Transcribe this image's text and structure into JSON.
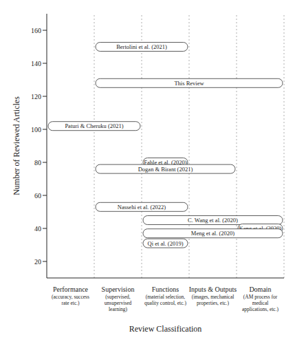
{
  "chart_data": {
    "type": "range_bar",
    "orientation": "horizontal",
    "x_label": "Review Classification",
    "y_label": "Number of Reviewed Articles",
    "categories": [
      "Performance",
      "Supervision",
      "Functions",
      "Inputs & Outputs",
      "Domain"
    ],
    "category_notes": [
      "(accuracy, success\nrate etc.)",
      "(supervised,\nunsupervised\nlearning)",
      "(material selection,\nquality control, etc.)",
      "(images, mechanical\nproperties, etc.)",
      "(AM process for\nmedical\napplications, etc.)"
    ],
    "xlim": [
      0,
      5
    ],
    "ylim": [
      10,
      170
    ],
    "yticks": [
      20,
      40,
      60,
      80,
      100,
      120,
      140,
      160
    ],
    "grid": true,
    "bars": [
      {
        "label": "Bertolini et al. (2021)",
        "start": 1,
        "end": 3,
        "value": 150
      },
      {
        "label": "This Review",
        "start": 1,
        "end": 5,
        "value": 128
      },
      {
        "label": "Paturi & Cheruku (2021)",
        "start": 0,
        "end": 2,
        "value": 102
      },
      {
        "label": "Fahle et al. (2020)",
        "start": 2,
        "end": 3,
        "value": 80
      },
      {
        "label": "Dogan & Birant (2021)",
        "start": 1,
        "end": 4,
        "value": 76
      },
      {
        "label": "Nassehi et al. (2022)",
        "start": 1,
        "end": 3,
        "value": 53
      },
      {
        "label": "C. Wang et al. (2020)",
        "start": 2,
        "end": 5,
        "value": 45
      },
      {
        "label": "Kang et al. (2020)",
        "start": 4,
        "end": 5,
        "value": 40
      },
      {
        "label": "Meng et al. (2020)",
        "start": 2,
        "end": 5,
        "value": 37
      },
      {
        "label": "Qi et al. (2019)",
        "start": 2,
        "end": 3,
        "value": 31
      }
    ]
  }
}
